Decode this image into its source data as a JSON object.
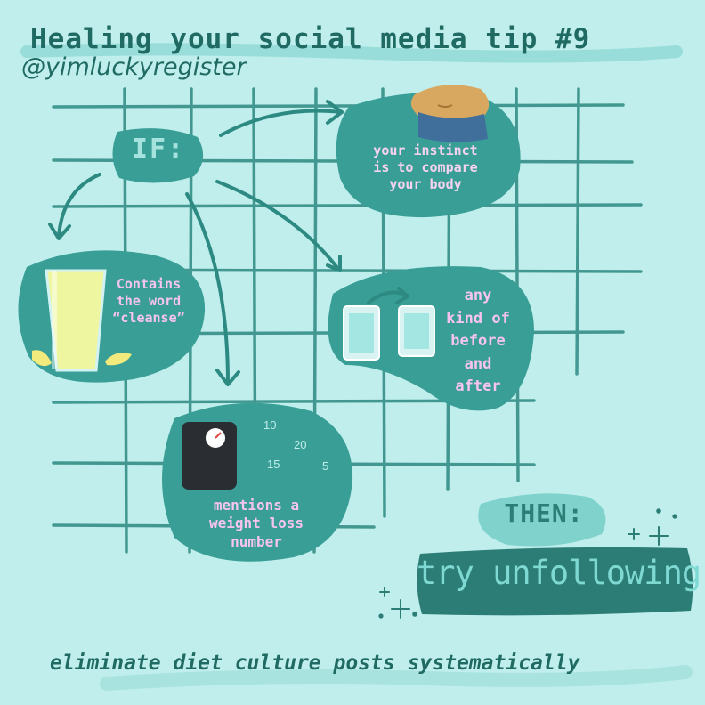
{
  "title": "Healing your social media tip #9",
  "handle": "@yimluckyregister",
  "if_label": "IF:",
  "bubbles": {
    "compare": [
      "your instinct",
      "is to compare",
      "your body"
    ],
    "cleanse": [
      "Contains",
      "the word",
      "“cleanse”"
    ],
    "before_after": [
      "any",
      "kind of",
      "before",
      "and",
      "after"
    ],
    "weight": [
      "mentions a",
      "weight loss",
      "number"
    ]
  },
  "scale_numbers": [
    "10",
    "20",
    "15",
    "5"
  ],
  "then_label": "THEN:",
  "action": "try unfollowing!",
  "footer": "eliminate diet culture posts systematically",
  "colors": {
    "background": "#bfeeed",
    "grid": "#2d8a82",
    "bubble": "#399e95",
    "title_text": "#1f6a63",
    "bubble_text": "#f6c4ee",
    "action_box": "#2b7d75",
    "then_bubble": "#80d2cc"
  }
}
